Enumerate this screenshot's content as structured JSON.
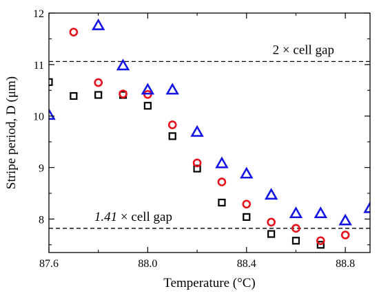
{
  "chart_data": {
    "type": "scatter",
    "title": "",
    "xlabel": "Temperature (°C)",
    "ylabel": "Stripe period, D (μm)",
    "xlim": [
      87.6,
      88.9
    ],
    "ylim": [
      7.35,
      12.0
    ],
    "x_ticks": [
      87.6,
      88.0,
      88.4,
      88.8
    ],
    "x_tick_labels": [
      "87.6",
      "88.0",
      "88.4",
      "88.8"
    ],
    "y_ticks": [
      8,
      9,
      10,
      11,
      12
    ],
    "y_tick_labels": [
      "8",
      "9",
      "10",
      "11",
      "12"
    ],
    "grid": false,
    "reference_lines": [
      {
        "y": 11.06,
        "label_prefix": "2",
        "label_rest": "× cell gap",
        "italic_prefix": false
      },
      {
        "y": 7.82,
        "label_prefix": "1.41",
        "label_rest": " × cell gap",
        "italic_prefix": true
      }
    ],
    "series": [
      {
        "marker": "square",
        "color": "#000000",
        "x": [
          87.6,
          87.7,
          87.8,
          87.9,
          88.0,
          88.1,
          88.2,
          88.3,
          88.4,
          88.5,
          88.6,
          88.7
        ],
        "y": [
          10.66,
          10.39,
          10.41,
          10.41,
          10.2,
          9.61,
          8.98,
          8.32,
          8.04,
          7.71,
          7.58,
          7.5
        ]
      },
      {
        "marker": "circle",
        "color": "#e8101a",
        "x": [
          87.7,
          87.8,
          87.9,
          88.0,
          88.1,
          88.2,
          88.3,
          88.4,
          88.5,
          88.6,
          88.7,
          88.8
        ],
        "y": [
          11.63,
          10.65,
          10.43,
          10.42,
          9.83,
          9.09,
          8.72,
          8.29,
          7.94,
          7.82,
          7.58,
          7.69
        ]
      },
      {
        "marker": "triangle",
        "color": "#1414e6",
        "x": [
          87.6,
          87.8,
          87.9,
          88.0,
          88.1,
          88.2,
          88.3,
          88.4,
          88.5,
          88.6,
          88.7,
          88.8,
          88.9
        ],
        "y": [
          10.02,
          11.76,
          10.98,
          10.51,
          10.51,
          9.69,
          9.08,
          8.88,
          8.47,
          8.11,
          8.11,
          7.97,
          8.21
        ]
      }
    ]
  }
}
